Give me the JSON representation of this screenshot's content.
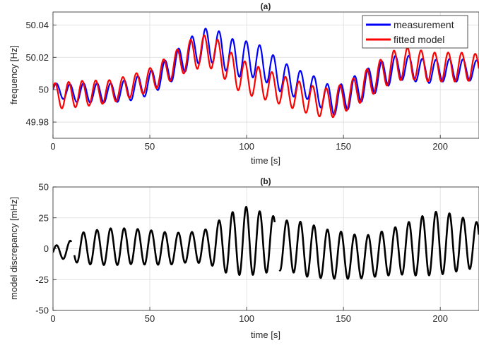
{
  "chart_data": [
    {
      "type": "line",
      "title": "(a)",
      "xlabel": "time [s]",
      "ylabel": "frequency [Hz]",
      "xlim": [
        0,
        220
      ],
      "ylim": [
        49.97,
        50.048
      ],
      "xticks": [
        0,
        50,
        100,
        150,
        200
      ],
      "xtick_labels": [
        "0",
        "50",
        "100",
        "150",
        "200"
      ],
      "yticks": [
        49.98,
        50,
        50.02,
        50.04
      ],
      "ytick_labels": [
        "49.98",
        "50",
        "50.02",
        "50.04"
      ],
      "grid": true,
      "legend": "top-right",
      "series": [
        {
          "name": "measurement",
          "color": "#0000ff",
          "baseline": {
            "x": [
              0,
              10,
              20,
              30,
              40,
              50,
              60,
              65,
              70,
              75,
              80,
              85,
              90,
              95,
              100,
              105,
              110,
              115,
              120,
              125,
              130,
              135,
              140,
              145,
              150,
              155,
              160,
              165,
              170,
              175,
              180,
              185,
              190,
              195,
              200,
              205,
              210,
              215,
              220
            ],
            "y": [
              50.0,
              49.998,
              49.998,
              49.998,
              50.0,
              50.004,
              50.012,
              50.017,
              50.022,
              50.026,
              50.028,
              50.026,
              50.022,
              50.019,
              50.019,
              50.018,
              50.015,
              50.01,
              50.007,
              50.004,
              50.003,
              50.0,
              49.996,
              49.993,
              49.995,
              49.999,
              50.002,
              50.006,
              50.009,
              50.012,
              50.014,
              50.013,
              50.012,
              50.011,
              50.012,
              50.012,
              50.012,
              50.012,
              50.012
            ]
          },
          "oscillation": {
            "period": 7.0,
            "amplitude": {
              "x": [
                0,
                15,
                30,
                45,
                60,
                75,
                90,
                100,
                115,
                130,
                150,
                165,
                180,
                195,
                210,
                220
              ],
              "y": [
                0.004,
                0.006,
                0.006,
                0.007,
                0.008,
                0.01,
                0.011,
                0.011,
                0.01,
                0.008,
                0.009,
                0.009,
                0.008,
                0.007,
                0.007,
                0.006
              ]
            }
          }
        },
        {
          "name": "fitted model",
          "color": "#ff0000",
          "baseline": {
            "x": [
              0,
              10,
              20,
              30,
              40,
              50,
              60,
              65,
              70,
              75,
              80,
              85,
              90,
              95,
              100,
              105,
              110,
              115,
              120,
              125,
              130,
              135,
              140,
              145,
              150,
              155,
              160,
              165,
              170,
              175,
              180,
              185,
              190,
              195,
              200,
              205,
              210,
              215,
              220
            ],
            "y": [
              49.996,
              49.997,
              49.998,
              49.999,
              50.002,
              50.006,
              50.013,
              50.017,
              50.021,
              50.023,
              50.024,
              50.021,
              50.015,
              50.01,
              50.007,
              50.005,
              50.003,
              50.001,
              49.999,
              49.997,
              49.995,
              49.993,
              49.992,
              49.992,
              49.995,
              49.998,
              50.002,
              50.006,
              50.01,
              50.014,
              50.016,
              50.016,
              50.015,
              50.014,
              50.014,
              50.014,
              50.014,
              50.014,
              50.014
            ]
          },
          "oscillation": {
            "period": 7.0,
            "amplitude": {
              "x": [
                0,
                15,
                30,
                45,
                60,
                75,
                90,
                100,
                115,
                130,
                150,
                165,
                180,
                195,
                210,
                220
              ],
              "y": [
                0.008,
                0.008,
                0.007,
                0.007,
                0.008,
                0.01,
                0.01,
                0.01,
                0.009,
                0.009,
                0.009,
                0.009,
                0.01,
                0.009,
                0.009,
                0.008
              ]
            }
          }
        }
      ]
    },
    {
      "type": "line",
      "title": "(b)",
      "xlabel": "time [s]",
      "ylabel": "model discrepancy [mHz]",
      "xlim": [
        0,
        220
      ],
      "ylim": [
        -50,
        50
      ],
      "xticks": [
        0,
        50,
        100,
        150,
        200
      ],
      "xtick_labels": [
        "0",
        "50",
        "100",
        "150",
        "200"
      ],
      "yticks": [
        -50,
        -25,
        0,
        25,
        50
      ],
      "ytick_labels": [
        "-50",
        "-25",
        "0",
        "25",
        "50"
      ],
      "grid": true,
      "series": [
        {
          "color": "#000000",
          "gaps": [
            [
              9.5,
              11
            ],
            [
              114.5,
              117
            ]
          ],
          "baseline": {
            "x": [
              0,
              20,
              40,
              60,
              80,
              100,
              120,
              140,
              160,
              180,
              200,
              220
            ],
            "y": [
              -3,
              1,
              2,
              0,
              2,
              6,
              3,
              -4,
              -7,
              -1,
              5,
              3
            ]
          },
          "oscillation": {
            "period": 7.0,
            "amplitude": {
              "x": [
                0,
                8,
                15,
                30,
                50,
                70,
                80,
                90,
                100,
                110,
                120,
                130,
                140,
                150,
                160,
                170,
                180,
                190,
                200,
                210,
                220
              ],
              "y": [
                5,
                7,
                13,
                15,
                14,
                12,
                14,
                24,
                28,
                24,
                20,
                22,
                20,
                19,
                17,
                18,
                20,
                24,
                26,
                22,
                18
              ]
            }
          }
        }
      ]
    }
  ]
}
